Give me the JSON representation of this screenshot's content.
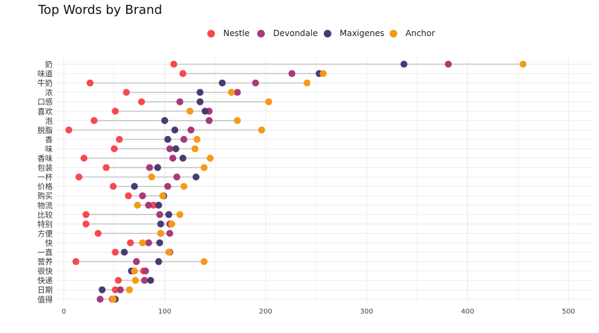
{
  "chart_data": {
    "type": "dumbbell",
    "title": "Top Words by Brand",
    "xlabel": "",
    "ylabel": "",
    "xlim": [
      0,
      500
    ],
    "xticks": [
      0,
      100,
      200,
      300,
      400,
      500
    ],
    "grid": true,
    "legend_position": "top",
    "categories": [
      "奶",
      "味道",
      "牛奶",
      "浓",
      "口感",
      "喜欢",
      "泡",
      "脱脂",
      "香",
      "味",
      "香味",
      "包装",
      "一杯",
      "价格",
      "购买",
      "物流",
      "比较",
      "特别",
      "方便",
      "快",
      "一直",
      "营养",
      "很快",
      "快递",
      "日期",
      "值得"
    ],
    "series": [
      {
        "name": "Nestle",
        "color": "#f8484f",
        "values": [
          109,
          118,
          26,
          62,
          77,
          51,
          30,
          5,
          55,
          50,
          20,
          42,
          15,
          49,
          64,
          89,
          22,
          22,
          34,
          66,
          51,
          12,
          79,
          54,
          51,
          48
        ]
      },
      {
        "name": "Devondale",
        "color": "#a8397a",
        "values": [
          381,
          226,
          190,
          172,
          115,
          144,
          144,
          126,
          119,
          105,
          108,
          85,
          112,
          103,
          78,
          84,
          95,
          105,
          105,
          84,
          105,
          72,
          81,
          80,
          56,
          36
        ]
      },
      {
        "name": "Maxigenes",
        "color": "#483b75",
        "values": [
          337,
          253,
          157,
          135,
          135,
          140,
          100,
          110,
          103,
          111,
          118,
          93,
          131,
          70,
          99,
          94,
          104,
          96,
          96,
          95,
          60,
          94,
          67,
          86,
          38,
          51
        ]
      },
      {
        "name": "Anchor",
        "color": "#f59a16",
        "values": [
          455,
          257,
          241,
          166,
          203,
          125,
          172,
          196,
          132,
          130,
          145,
          139,
          87,
          119,
          98,
          73,
          115,
          107,
          96,
          78,
          104,
          139,
          70,
          71,
          65,
          49
        ]
      }
    ]
  },
  "colors": {
    "segment": "#bdbdbd",
    "grid": "#ebebeb"
  }
}
